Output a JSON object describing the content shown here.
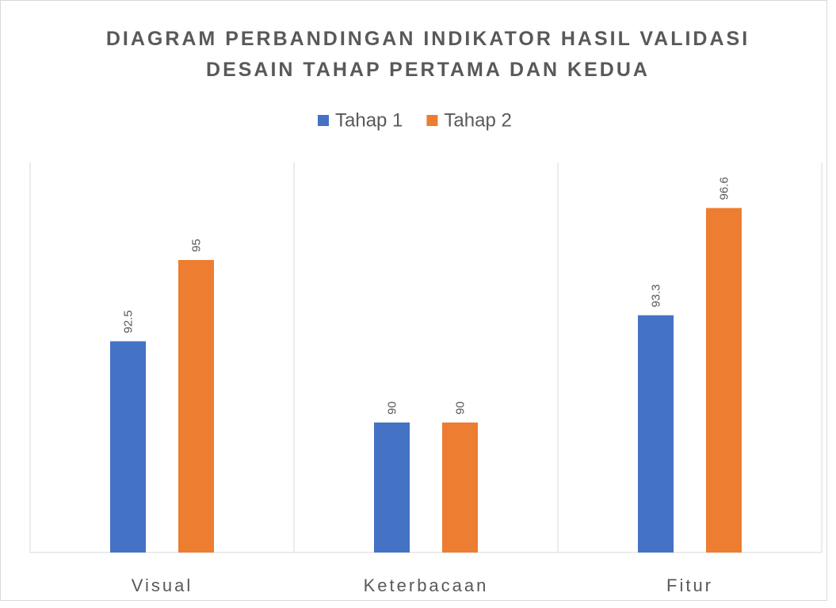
{
  "chart_data": {
    "type": "bar",
    "title": "DIAGRAM PERBANDINGAN INDIKATOR HASIL VALIDASI DESAIN TAHAP PERTAMA DAN KEDUA",
    "categories": [
      "Visual",
      "Keterbacaan",
      "Fitur"
    ],
    "series": [
      {
        "name": "Tahap 1",
        "color": "#4472c4",
        "values": [
          92.5,
          90,
          93.3
        ]
      },
      {
        "name": "Tahap 2",
        "color": "#ed7d31",
        "values": [
          95,
          90,
          96.6
        ]
      }
    ],
    "ylim": [
      86,
      98
    ],
    "legend": "top"
  }
}
